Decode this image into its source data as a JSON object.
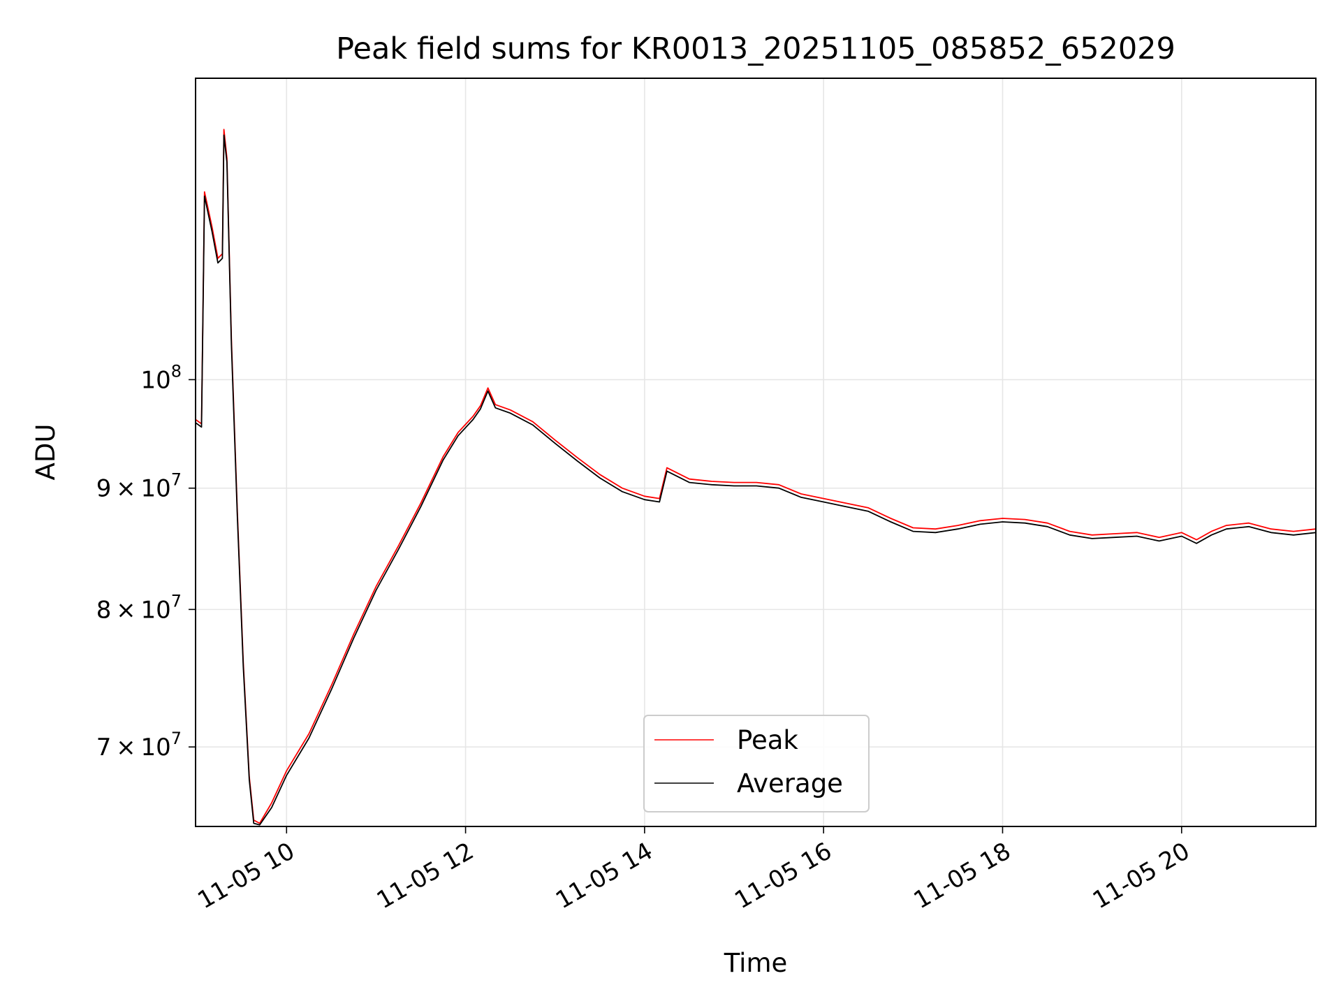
{
  "chart_data": {
    "type": "line",
    "title": "Peak field sums for KR0013_20251105_085852_652029",
    "xlabel": "Time",
    "ylabel": "ADU",
    "x_axis": "time",
    "y_scale": "log",
    "xlim": [
      "2025-11-05 08:59",
      "2025-11-05 21:30"
    ],
    "ylim": [
      64800000,
      134000000
    ],
    "x_tick_labels": [
      "11-05 10",
      "11-05 12",
      "11-05 14",
      "11-05 16",
      "11-05 18",
      "11-05 20"
    ],
    "x_ticks": [
      "2025-11-05 10:00",
      "2025-11-05 12:00",
      "2025-11-05 14:00",
      "2025-11-05 16:00",
      "2025-11-05 18:00",
      "2025-11-05 20:00"
    ],
    "y_ticks": [
      {
        "value": 70000000,
        "mantissa": "7",
        "exponent": "7"
      },
      {
        "value": 80000000,
        "mantissa": "8",
        "exponent": "7"
      },
      {
        "value": 90000000,
        "mantissa": "9",
        "exponent": "7"
      },
      {
        "value": 100000000,
        "mantissa": "",
        "exponent": "8"
      }
    ],
    "tick_base": "10",
    "times_sign": "×",
    "grid": true,
    "legend_position": "lower center",
    "series": [
      {
        "name": "Peak",
        "color": "#ff0000",
        "points": [
          [
            "2025-11-05 08:59",
            96200000
          ],
          [
            "2025-11-05 09:03",
            95800000
          ],
          [
            "2025-11-05 09:05",
            120000000
          ],
          [
            "2025-11-05 09:10",
            116000000
          ],
          [
            "2025-11-05 09:14",
            112500000
          ],
          [
            "2025-11-05 09:17",
            113000000
          ],
          [
            "2025-11-05 09:18",
            127500000
          ],
          [
            "2025-11-05 09:20",
            124000000
          ],
          [
            "2025-11-05 09:23",
            104000000
          ],
          [
            "2025-11-05 09:27",
            88000000
          ],
          [
            "2025-11-05 09:31",
            76000000
          ],
          [
            "2025-11-05 09:35",
            68000000
          ],
          [
            "2025-11-05 09:38",
            65200000
          ],
          [
            "2025-11-05 09:42",
            65000000
          ],
          [
            "2025-11-05 09:50",
            66300000
          ],
          [
            "2025-11-05 10:00",
            68400000
          ],
          [
            "2025-11-05 10:15",
            70900000
          ],
          [
            "2025-11-05 10:30",
            74300000
          ],
          [
            "2025-11-05 10:45",
            78100000
          ],
          [
            "2025-11-05 11:00",
            81800000
          ],
          [
            "2025-11-05 11:15",
            85100000
          ],
          [
            "2025-11-05 11:30",
            88700000
          ],
          [
            "2025-11-05 11:45",
            92800000
          ],
          [
            "2025-11-05 11:55",
            95000000
          ],
          [
            "2025-11-05 12:05",
            96500000
          ],
          [
            "2025-11-05 12:10",
            97500000
          ],
          [
            "2025-11-05 12:15",
            99200000
          ],
          [
            "2025-11-05 12:20",
            97600000
          ],
          [
            "2025-11-05 12:30",
            97100000
          ],
          [
            "2025-11-05 12:45",
            96000000
          ],
          [
            "2025-11-05 13:00",
            94300000
          ],
          [
            "2025-11-05 13:15",
            92700000
          ],
          [
            "2025-11-05 13:30",
            91200000
          ],
          [
            "2025-11-05 13:45",
            90000000
          ],
          [
            "2025-11-05 14:00",
            89300000
          ],
          [
            "2025-11-05 14:10",
            89100000
          ],
          [
            "2025-11-05 14:15",
            91800000
          ],
          [
            "2025-11-05 14:30",
            90800000
          ],
          [
            "2025-11-05 14:45",
            90600000
          ],
          [
            "2025-11-05 15:00",
            90500000
          ],
          [
            "2025-11-05 15:15",
            90500000
          ],
          [
            "2025-11-05 15:30",
            90300000
          ],
          [
            "2025-11-05 15:45",
            89500000
          ],
          [
            "2025-11-05 16:00",
            89100000
          ],
          [
            "2025-11-05 16:15",
            88700000
          ],
          [
            "2025-11-05 16:30",
            88300000
          ],
          [
            "2025-11-05 16:45",
            87400000
          ],
          [
            "2025-11-05 17:00",
            86600000
          ],
          [
            "2025-11-05 17:15",
            86500000
          ],
          [
            "2025-11-05 17:30",
            86800000
          ],
          [
            "2025-11-05 17:45",
            87200000
          ],
          [
            "2025-11-05 18:00",
            87400000
          ],
          [
            "2025-11-05 18:15",
            87300000
          ],
          [
            "2025-11-05 18:30",
            87000000
          ],
          [
            "2025-11-05 18:45",
            86300000
          ],
          [
            "2025-11-05 19:00",
            86000000
          ],
          [
            "2025-11-05 19:15",
            86100000
          ],
          [
            "2025-11-05 19:30",
            86200000
          ],
          [
            "2025-11-05 19:45",
            85800000
          ],
          [
            "2025-11-05 20:00",
            86200000
          ],
          [
            "2025-11-05 20:10",
            85600000
          ],
          [
            "2025-11-05 20:20",
            86300000
          ],
          [
            "2025-11-05 20:30",
            86800000
          ],
          [
            "2025-11-05 20:45",
            87000000
          ],
          [
            "2025-11-05 21:00",
            86500000
          ],
          [
            "2025-11-05 21:15",
            86300000
          ],
          [
            "2025-11-05 21:30",
            86500000
          ]
        ]
      },
      {
        "name": "Average",
        "color": "#000000",
        "points": [
          [
            "2025-11-05 08:59",
            95900000
          ],
          [
            "2025-11-05 09:03",
            95500000
          ],
          [
            "2025-11-05 09:05",
            119500000
          ],
          [
            "2025-11-05 09:10",
            115500000
          ],
          [
            "2025-11-05 09:14",
            112000000
          ],
          [
            "2025-11-05 09:17",
            112500000
          ],
          [
            "2025-11-05 09:18",
            126800000
          ],
          [
            "2025-11-05 09:20",
            123500000
          ],
          [
            "2025-11-05 09:23",
            103500000
          ],
          [
            "2025-11-05 09:27",
            87600000
          ],
          [
            "2025-11-05 09:31",
            75700000
          ],
          [
            "2025-11-05 09:35",
            67800000
          ],
          [
            "2025-11-05 09:38",
            65000000
          ],
          [
            "2025-11-05 09:42",
            64900000
          ],
          [
            "2025-11-05 09:50",
            66000000
          ],
          [
            "2025-11-05 10:00",
            68100000
          ],
          [
            "2025-11-05 10:15",
            70600000
          ],
          [
            "2025-11-05 10:30",
            74000000
          ],
          [
            "2025-11-05 10:45",
            77800000
          ],
          [
            "2025-11-05 11:00",
            81500000
          ],
          [
            "2025-11-05 11:15",
            84800000
          ],
          [
            "2025-11-05 11:30",
            88400000
          ],
          [
            "2025-11-05 11:45",
            92500000
          ],
          [
            "2025-11-05 11:55",
            94700000
          ],
          [
            "2025-11-05 12:05",
            96200000
          ],
          [
            "2025-11-05 12:10",
            97200000
          ],
          [
            "2025-11-05 12:15",
            98900000
          ],
          [
            "2025-11-05 12:20",
            97300000
          ],
          [
            "2025-11-05 12:30",
            96800000
          ],
          [
            "2025-11-05 12:45",
            95700000
          ],
          [
            "2025-11-05 13:00",
            94000000
          ],
          [
            "2025-11-05 13:15",
            92400000
          ],
          [
            "2025-11-05 13:30",
            90900000
          ],
          [
            "2025-11-05 13:45",
            89700000
          ],
          [
            "2025-11-05 14:00",
            89000000
          ],
          [
            "2025-11-05 14:10",
            88800000
          ],
          [
            "2025-11-05 14:15",
            91500000
          ],
          [
            "2025-11-05 14:30",
            90500000
          ],
          [
            "2025-11-05 14:45",
            90300000
          ],
          [
            "2025-11-05 15:00",
            90200000
          ],
          [
            "2025-11-05 15:15",
            90200000
          ],
          [
            "2025-11-05 15:30",
            90000000
          ],
          [
            "2025-11-05 15:45",
            89200000
          ],
          [
            "2025-11-05 16:00",
            88800000
          ],
          [
            "2025-11-05 16:15",
            88400000
          ],
          [
            "2025-11-05 16:30",
            88000000
          ],
          [
            "2025-11-05 16:45",
            87100000
          ],
          [
            "2025-11-05 17:00",
            86300000
          ],
          [
            "2025-11-05 17:15",
            86200000
          ],
          [
            "2025-11-05 17:30",
            86500000
          ],
          [
            "2025-11-05 17:45",
            86900000
          ],
          [
            "2025-11-05 18:00",
            87100000
          ],
          [
            "2025-11-05 18:15",
            87000000
          ],
          [
            "2025-11-05 18:30",
            86700000
          ],
          [
            "2025-11-05 18:45",
            86000000
          ],
          [
            "2025-11-05 19:00",
            85700000
          ],
          [
            "2025-11-05 19:15",
            85800000
          ],
          [
            "2025-11-05 19:30",
            85900000
          ],
          [
            "2025-11-05 19:45",
            85500000
          ],
          [
            "2025-11-05 20:00",
            85900000
          ],
          [
            "2025-11-05 20:10",
            85300000
          ],
          [
            "2025-11-05 20:20",
            86000000
          ],
          [
            "2025-11-05 20:30",
            86500000
          ],
          [
            "2025-11-05 20:45",
            86700000
          ],
          [
            "2025-11-05 21:00",
            86200000
          ],
          [
            "2025-11-05 21:15",
            86000000
          ],
          [
            "2025-11-05 21:30",
            86200000
          ]
        ]
      }
    ]
  }
}
